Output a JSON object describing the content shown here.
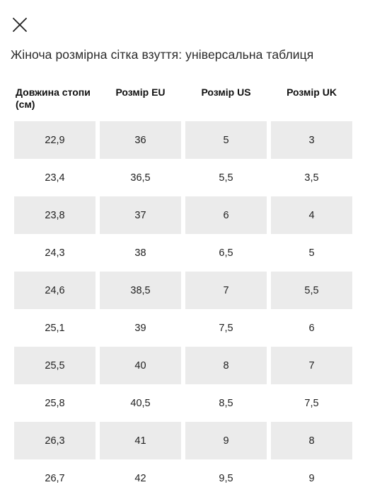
{
  "title": "Жіноча розмірна сітка взуття: універсальна таблиця",
  "table": {
    "headers": [
      "Довжина стопи (см)",
      "Розмір EU",
      "Розмір US",
      "Розмір UK"
    ],
    "rows": [
      [
        "22,9",
        "36",
        "5",
        "3"
      ],
      [
        "23,4",
        "36,5",
        "5,5",
        "3,5"
      ],
      [
        "23,8",
        "37",
        "6",
        "4"
      ],
      [
        "24,3",
        "38",
        "6,5",
        "5"
      ],
      [
        "24,6",
        "38,5",
        "7",
        "5,5"
      ],
      [
        "25,1",
        "39",
        "7,5",
        "6"
      ],
      [
        "25,5",
        "40",
        "8",
        "7"
      ],
      [
        "25,8",
        "40,5",
        "8,5",
        "7,5"
      ],
      [
        "26,3",
        "41",
        "9",
        "8"
      ],
      [
        "26,7",
        "42",
        "9,5",
        "9"
      ]
    ]
  },
  "colors": {
    "shaded_row": "#ebebeb",
    "text": "#1a1a1a"
  },
  "icons": {
    "close": "close-icon"
  }
}
